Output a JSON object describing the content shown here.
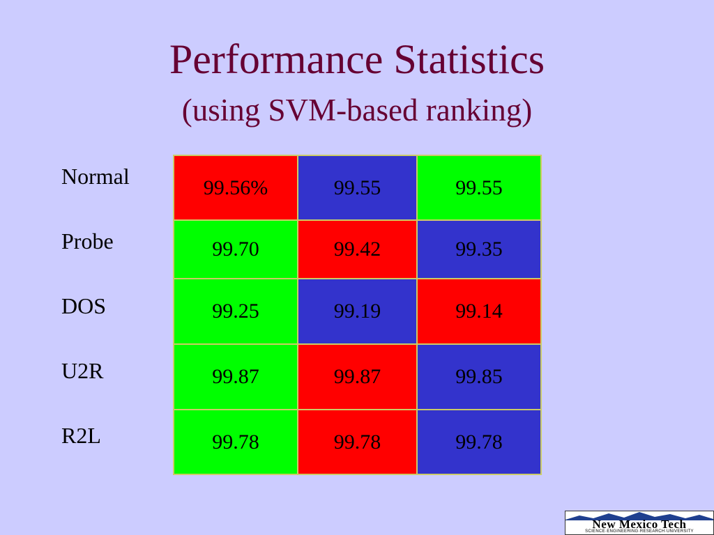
{
  "slide": {
    "title": "Performance Statistics",
    "subtitle": "(using SVM-based ranking)"
  },
  "table": {
    "row_labels": [
      "Normal",
      "Probe",
      "DOS",
      "U2R",
      "R2L"
    ],
    "rows": [
      [
        {
          "value": "99.56%",
          "color": "red"
        },
        {
          "value": "99.55",
          "color": "blue"
        },
        {
          "value": "99.55",
          "color": "green"
        }
      ],
      [
        {
          "value": "99.70",
          "color": "green"
        },
        {
          "value": "99.42",
          "color": "red"
        },
        {
          "value": "99.35",
          "color": "blue"
        }
      ],
      [
        {
          "value": "99.25",
          "color": "green"
        },
        {
          "value": "99.19",
          "color": "blue"
        },
        {
          "value": "99.14",
          "color": "red"
        }
      ],
      [
        {
          "value": "99.87",
          "color": "green"
        },
        {
          "value": "99.87",
          "color": "red"
        },
        {
          "value": "99.85",
          "color": "blue"
        }
      ],
      [
        {
          "value": "99.78",
          "color": "green"
        },
        {
          "value": "99.78",
          "color": "red"
        },
        {
          "value": "99.78",
          "color": "blue"
        }
      ]
    ]
  },
  "colors": {
    "background": "#ccccff",
    "title": "#660033",
    "red": "#ff0000",
    "green": "#00ff00",
    "blue": "#3333cc"
  },
  "logo": {
    "name": "New Mexico Tech",
    "tagline": "SCIENCE·ENGINEERING·RESEARCH·UNIVERSITY",
    "icon": "mountain-icon"
  }
}
